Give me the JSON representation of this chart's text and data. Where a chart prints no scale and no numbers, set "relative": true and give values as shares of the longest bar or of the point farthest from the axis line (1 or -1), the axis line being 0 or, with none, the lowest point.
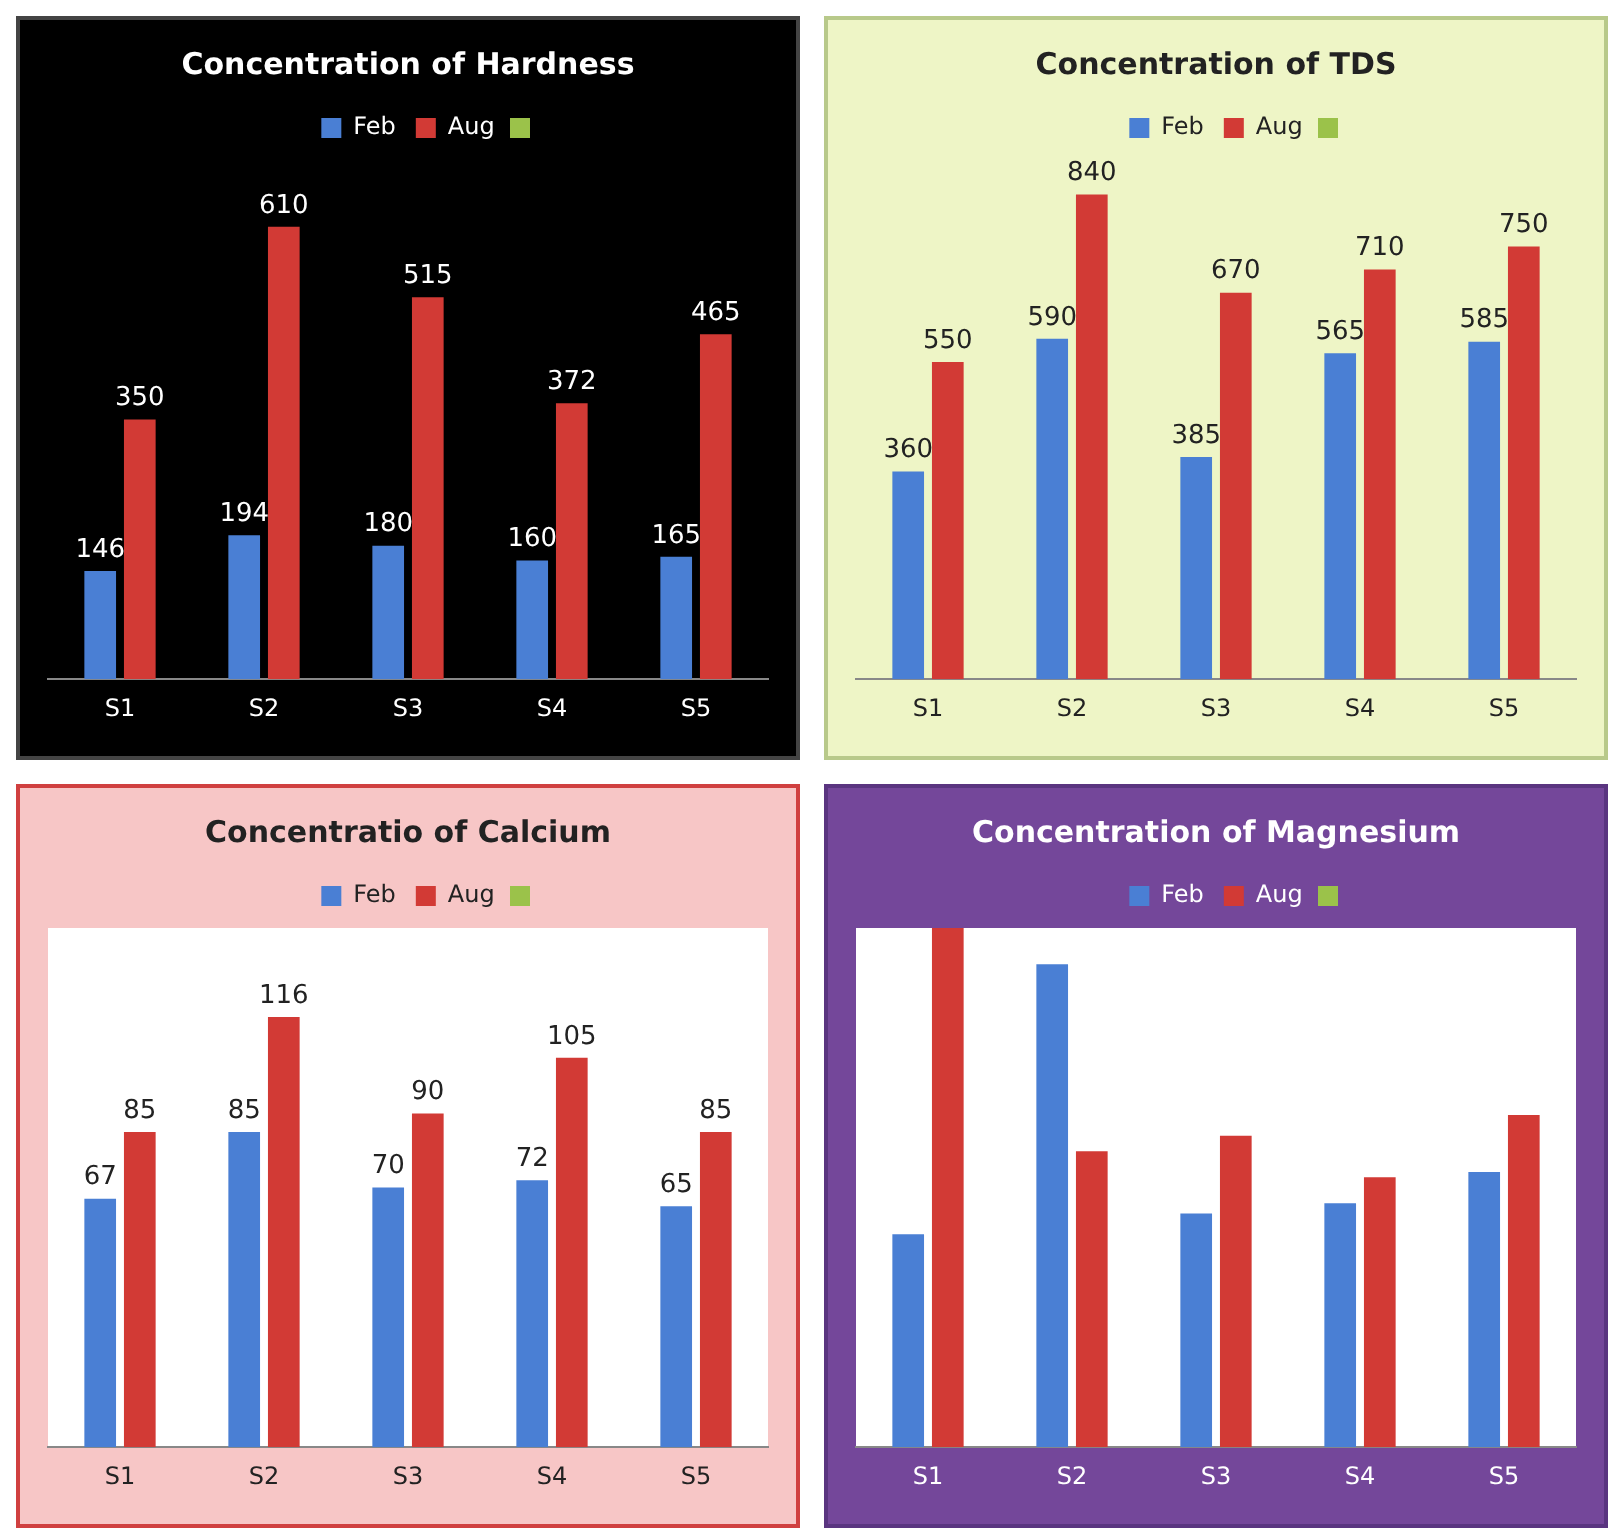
{
  "chart_data": [
    {
      "type": "bar",
      "title": "Concentration of Hardness",
      "categories": [
        "S1",
        "S2",
        "S3",
        "S4",
        "S5"
      ],
      "legend": "top",
      "grid": false,
      "data_labels": true,
      "tick_labels": "x",
      "series": [
        {
          "name": "Feb",
          "color": "#4a7fd4",
          "values": [
            146,
            194,
            180,
            160,
            165
          ]
        },
        {
          "name": "Aug",
          "color": "#d23a35",
          "values": [
            350,
            610,
            515,
            372,
            465
          ]
        }
      ]
    },
    {
      "type": "bar",
      "title": "Concentration of TDS",
      "categories": [
        "S1",
        "S2",
        "S3",
        "S4",
        "S5"
      ],
      "legend": "top",
      "grid": false,
      "data_labels": true,
      "tick_labels": "x",
      "series": [
        {
          "name": "Feb",
          "color": "#4a7fd4",
          "values": [
            360,
            590,
            385,
            565,
            585
          ]
        },
        {
          "name": "Aug",
          "color": "#d23a35",
          "values": [
            550,
            840,
            670,
            710,
            750
          ]
        }
      ]
    },
    {
      "type": "bar",
      "title": "Concentratio of Calcium",
      "categories": [
        "S1",
        "S2",
        "S3",
        "S4",
        "S5"
      ],
      "legend": "top",
      "grid": false,
      "data_labels": true,
      "tick_labels": "x",
      "series": [
        {
          "name": "Feb",
          "color": "#4a7fd4",
          "values": [
            67,
            85,
            70,
            72,
            65
          ]
        },
        {
          "name": "Aug",
          "color": "#d23a35",
          "values": [
            85,
            116,
            90,
            105,
            85
          ]
        }
      ]
    },
    {
      "type": "bar",
      "title": "Concentration of Magnesium",
      "categories": [
        "S1",
        "S2",
        "S3",
        "S4",
        "S5"
      ],
      "legend": "top",
      "grid": false,
      "relative": true,
      "series": [
        {
          "name": "Feb",
          "color": "#4a7fd4",
          "values": [
            0.41,
            0.93,
            0.45,
            0.47,
            0.53
          ]
        },
        {
          "name": "Aug",
          "color": "#d23a35",
          "values": [
            1,
            0.57,
            0.6,
            0.52,
            0.64
          ]
        }
      ]
    }
  ]
}
